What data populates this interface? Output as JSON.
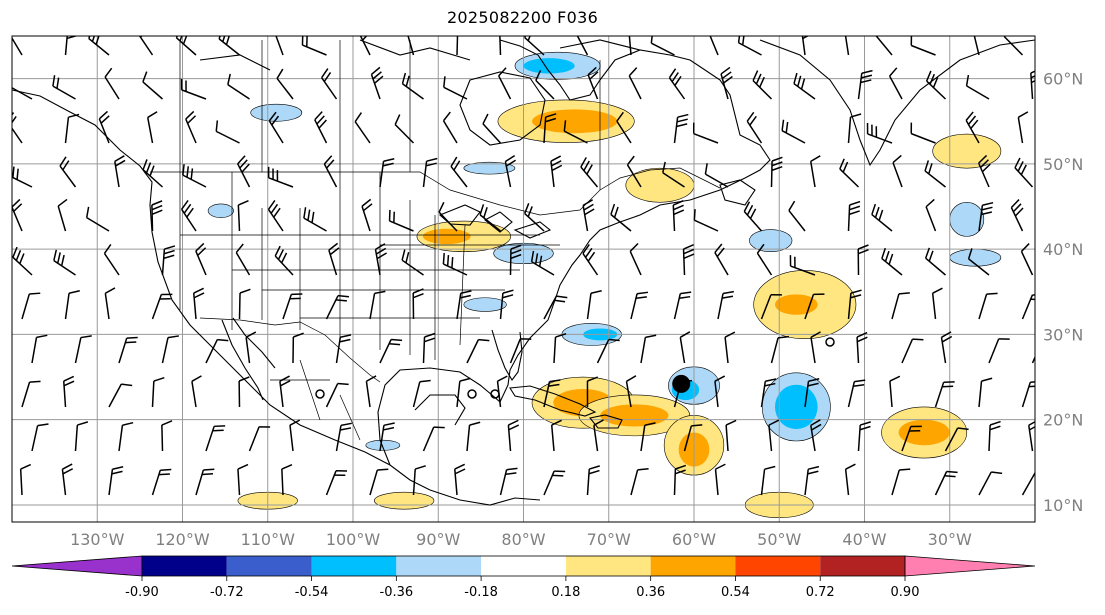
{
  "title": "2025082200 F036",
  "map_extent": {
    "lon_min": -140,
    "lon_max": -20,
    "lat_min": 8,
    "lat_max": 65
  },
  "lon_ticks": [
    {
      "lon": -130,
      "label": "130°W"
    },
    {
      "lon": -120,
      "label": "120°W"
    },
    {
      "lon": -110,
      "label": "110°W"
    },
    {
      "lon": -100,
      "label": "100°W"
    },
    {
      "lon": -90,
      "label": "90°W"
    },
    {
      "lon": -80,
      "label": "80°W"
    },
    {
      "lon": -70,
      "label": "70°W"
    },
    {
      "lon": -60,
      "label": "60°W"
    },
    {
      "lon": -50,
      "label": "50°W"
    },
    {
      "lon": -40,
      "label": "40°W"
    },
    {
      "lon": -30,
      "label": "30°W"
    }
  ],
  "lat_ticks": [
    {
      "lat": 60,
      "label": "60°N"
    },
    {
      "lat": 50,
      "label": "50°N"
    },
    {
      "lat": 40,
      "label": "40°N"
    },
    {
      "lat": 30,
      "label": "30°N"
    },
    {
      "lat": 20,
      "label": "20°N"
    },
    {
      "lat": 10,
      "label": "10°N"
    }
  ],
  "colorbar": {
    "levels": [
      "-0.90",
      "-0.72",
      "-0.54",
      "-0.36",
      "-0.18",
      "0.18",
      "0.36",
      "0.54",
      "0.72",
      "0.90"
    ],
    "colors": {
      "under": "#9932cc",
      "bins": [
        "#00008b",
        "#3a5fcd",
        "#00bfff",
        "#add8f7",
        "#ffffff",
        "#ffe680",
        "#ffa500",
        "#ff4500",
        "#b22222"
      ],
      "over": "#ff80b0"
    }
  },
  "storm_center": {
    "lon": -61.5,
    "lat": 24.2
  },
  "anomaly_regions": [
    {
      "lon": -87,
      "lat": 41.5,
      "rx": 5.5,
      "ry": 1.8,
      "level": 1
    },
    {
      "lon": -89,
      "lat": 41.5,
      "rx": 2.8,
      "ry": 0.9,
      "level": 2
    },
    {
      "lon": -75,
      "lat": 55,
      "rx": 8,
      "ry": 2.5,
      "level": 1
    },
    {
      "lon": -74,
      "lat": 55,
      "rx": 5,
      "ry": 1.4,
      "level": 2
    },
    {
      "lon": -73,
      "lat": 22,
      "rx": 6,
      "ry": 3,
      "level": 1
    },
    {
      "lon": -73,
      "lat": 22,
      "rx": 3.5,
      "ry": 1.6,
      "level": 2
    },
    {
      "lon": -67,
      "lat": 20.5,
      "rx": 6.5,
      "ry": 2.4,
      "level": 1
    },
    {
      "lon": -67,
      "lat": 20.5,
      "rx": 4,
      "ry": 1.3,
      "level": 2
    },
    {
      "lon": -60,
      "lat": 17,
      "rx": 3.5,
      "ry": 3.5,
      "level": 1
    },
    {
      "lon": -60,
      "lat": 16.5,
      "rx": 1.8,
      "ry": 2,
      "level": 2
    },
    {
      "lon": -47,
      "lat": 33.5,
      "rx": 6,
      "ry": 4,
      "level": 1
    },
    {
      "lon": -48,
      "lat": 33.5,
      "rx": 2.5,
      "ry": 1.2,
      "level": 2
    },
    {
      "lon": -33,
      "lat": 18.5,
      "rx": 5,
      "ry": 3,
      "level": 1
    },
    {
      "lon": -33,
      "lat": 18.5,
      "rx": 3,
      "ry": 1.5,
      "level": 2
    },
    {
      "lon": -28,
      "lat": 51.5,
      "rx": 4,
      "ry": 2,
      "level": 1
    },
    {
      "lon": -50,
      "lat": 10,
      "rx": 4,
      "ry": 1.5,
      "level": 1
    },
    {
      "lon": -110,
      "lat": 10.5,
      "rx": 3.5,
      "ry": 1,
      "level": 1
    },
    {
      "lon": -94,
      "lat": 10.5,
      "rx": 3.5,
      "ry": 1,
      "level": 1
    },
    {
      "lon": -64,
      "lat": 47.5,
      "rx": 4,
      "ry": 2,
      "level": 1
    },
    {
      "lon": -60,
      "lat": 24,
      "rx": 3,
      "ry": 2.2,
      "level": -1
    },
    {
      "lon": -61,
      "lat": 23.5,
      "rx": 1.6,
      "ry": 1.2,
      "level": -2
    },
    {
      "lon": -48,
      "lat": 21.5,
      "rx": 4,
      "ry": 4,
      "level": -1
    },
    {
      "lon": -48,
      "lat": 21.5,
      "rx": 2.5,
      "ry": 2.6,
      "level": -2
    },
    {
      "lon": -76,
      "lat": 61.5,
      "rx": 5,
      "ry": 1.6,
      "level": -1
    },
    {
      "lon": -77,
      "lat": 61.5,
      "rx": 3,
      "ry": 0.9,
      "level": -2
    },
    {
      "lon": -72,
      "lat": 30,
      "rx": 3.5,
      "ry": 1.3,
      "level": -1
    },
    {
      "lon": -71,
      "lat": 30,
      "rx": 2,
      "ry": 0.7,
      "level": -2
    },
    {
      "lon": -80,
      "lat": 39.5,
      "rx": 3.5,
      "ry": 1.2,
      "level": -1
    },
    {
      "lon": -84.5,
      "lat": 33.5,
      "rx": 2.5,
      "ry": 0.8,
      "level": -1
    },
    {
      "lon": -84,
      "lat": 49.5,
      "rx": 3,
      "ry": 0.7,
      "level": -1
    },
    {
      "lon": -109,
      "lat": 56,
      "rx": 3,
      "ry": 1,
      "level": -1
    },
    {
      "lon": -28,
      "lat": 43.5,
      "rx": 2,
      "ry": 2,
      "level": -1
    },
    {
      "lon": -27,
      "lat": 39,
      "rx": 3,
      "ry": 1,
      "level": -1
    },
    {
      "lon": -51,
      "lat": 41,
      "rx": 2.5,
      "ry": 1.3,
      "level": -1
    },
    {
      "lon": -115.5,
      "lat": 44.5,
      "rx": 1.5,
      "ry": 0.8,
      "level": -1
    },
    {
      "lon": -96.5,
      "lat": 17,
      "rx": 2,
      "ry": 0.6,
      "level": -1
    }
  ]
}
